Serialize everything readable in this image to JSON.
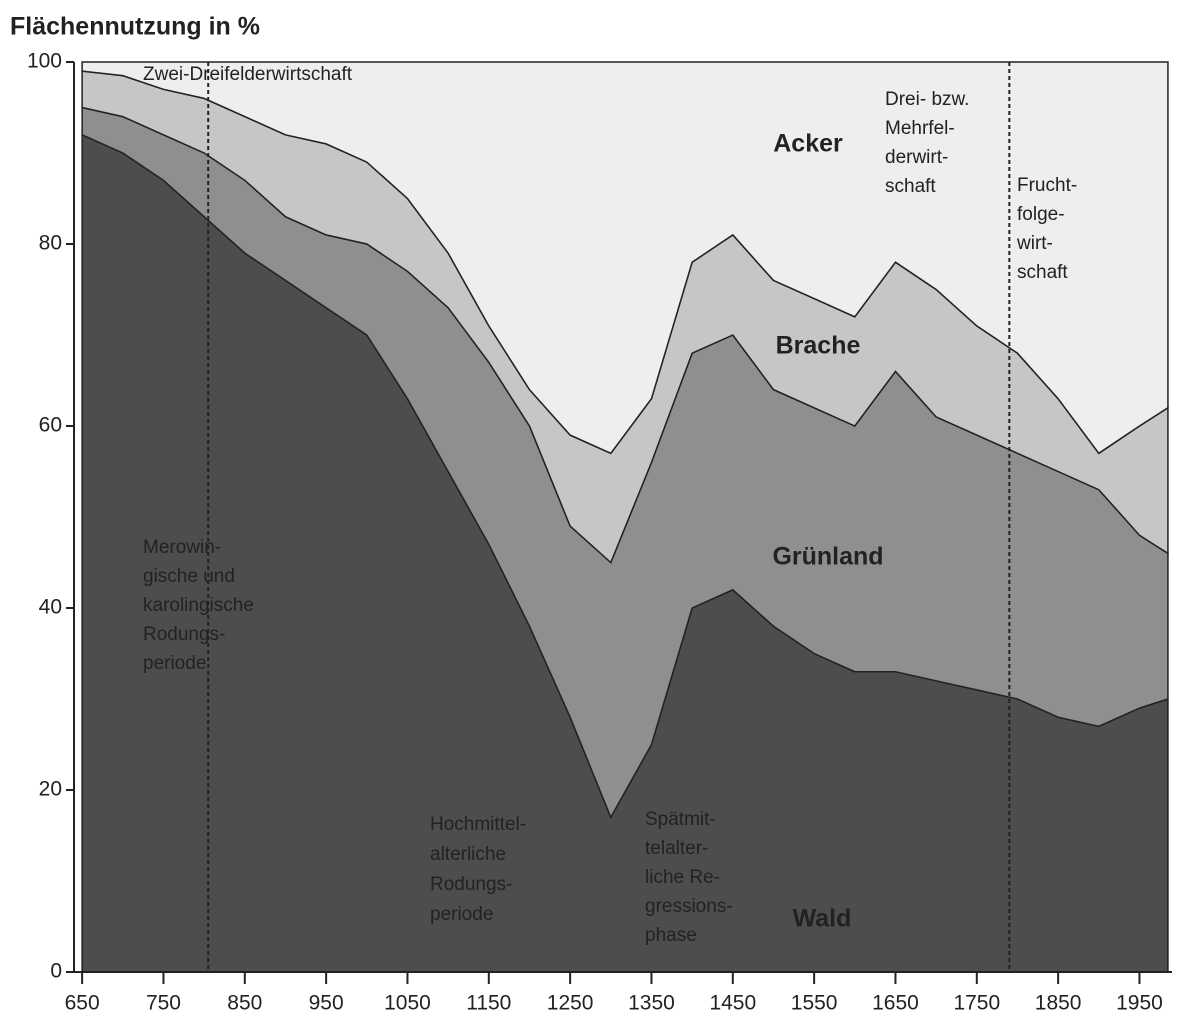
{
  "chart_data": {
    "type": "stacked_area",
    "title": "Flächennutzung in %",
    "x": [
      650,
      700,
      750,
      800,
      850,
      900,
      950,
      1000,
      1050,
      1100,
      1150,
      1200,
      1250,
      1300,
      1350,
      1400,
      1450,
      1500,
      1550,
      1600,
      1650,
      1700,
      1750,
      1800,
      1850,
      1900,
      1950,
      1985
    ],
    "series": [
      {
        "name": "Wald",
        "color": "#4d4d4d",
        "values": [
          92,
          90,
          87,
          83,
          79,
          76,
          73,
          70,
          63,
          55,
          47,
          38,
          28,
          17,
          25,
          40,
          42,
          38,
          35,
          33,
          33,
          32,
          31,
          30,
          28,
          27,
          29,
          30
        ]
      },
      {
        "name": "Grünland",
        "color": "#8f8f8f",
        "values": [
          3,
          4,
          5,
          7,
          8,
          7,
          8,
          10,
          14,
          18,
          20,
          22,
          21,
          28,
          31,
          28,
          28,
          26,
          27,
          27,
          33,
          29,
          28,
          27,
          27,
          26,
          19,
          16
        ]
      },
      {
        "name": "Brache",
        "color": "#c6c6c6",
        "values": [
          4,
          4.5,
          5,
          6,
          7,
          9,
          10,
          9,
          8,
          6,
          4,
          4,
          10,
          12,
          7,
          10,
          11,
          12,
          12,
          12,
          12,
          14,
          12,
          11,
          8,
          4,
          12,
          16
        ]
      },
      {
        "name": "Acker",
        "color": "#eeeeee",
        "values": [
          1,
          1.5,
          3,
          4,
          6,
          8,
          9,
          11,
          15,
          21,
          29,
          36,
          41,
          43,
          37,
          22,
          19,
          24,
          26,
          28,
          22,
          25,
          29,
          32,
          37,
          43,
          40,
          38
        ]
      }
    ],
    "xlim": [
      640,
      1990
    ],
    "ylim": [
      0,
      100
    ],
    "xticks": [
      650,
      750,
      850,
      950,
      1050,
      1150,
      1250,
      1350,
      1450,
      1550,
      1650,
      1750,
      1850,
      1950
    ],
    "yticks": [
      0,
      20,
      40,
      60,
      80,
      100
    ],
    "period_dividers": [
      805,
      1790
    ],
    "annotations": [
      [
        "Zwei-Dreifelderwirtschaft"
      ],
      [
        "Drei- bzw.",
        "Mehrfel-",
        "derwirt-",
        "schaft"
      ],
      [
        "Frucht-",
        "folge-",
        "wirt-",
        "schaft"
      ],
      [
        "Merowin-",
        "gische und",
        "karolingische",
        "Rodungs-",
        "periode"
      ],
      [
        "Hochmittel-",
        "alterliche",
        "Rodungs-",
        "periode"
      ],
      [
        "Spätmit-",
        "telalter-",
        "liche Re-",
        "gressions-",
        "phase"
      ]
    ]
  }
}
